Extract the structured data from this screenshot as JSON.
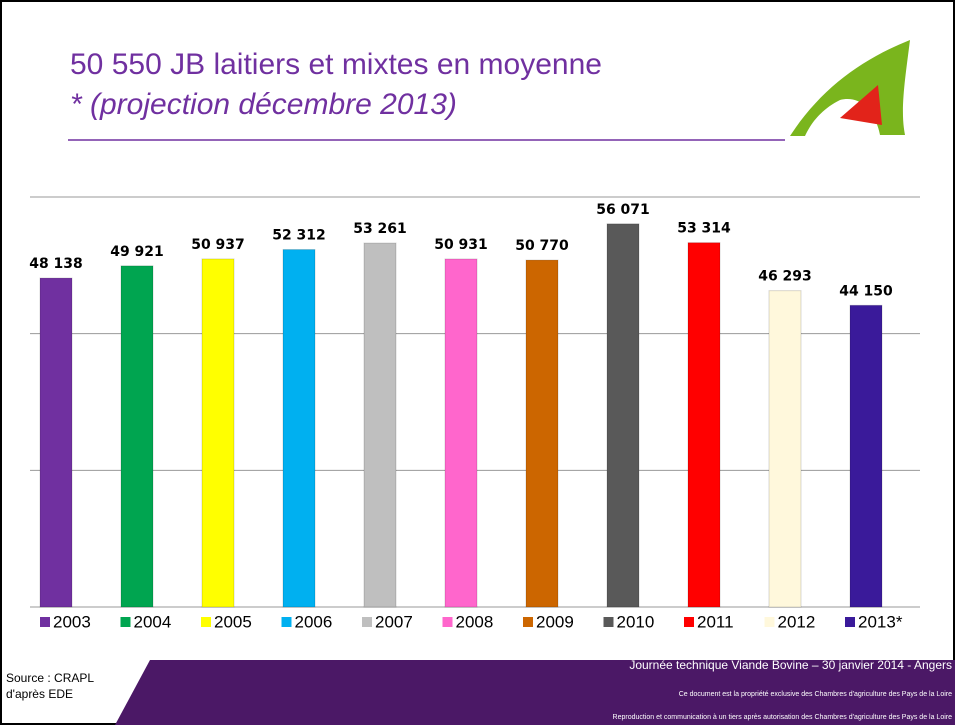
{
  "chart_data": {
    "type": "bar",
    "title": "50 550 JB laitiers et mixtes en moyenne",
    "subtitle": "* (projection décembre 2013)",
    "categories": [
      "2003",
      "2004",
      "2005",
      "2006",
      "2007",
      "2008",
      "2009",
      "2010",
      "2011",
      "2012",
      "2013*"
    ],
    "values": [
      48138,
      49921,
      50937,
      52312,
      53261,
      50931,
      50770,
      56071,
      53314,
      46293,
      44150
    ],
    "value_labels": [
      "48 138",
      "49 921",
      "50 937",
      "52 312",
      "53 261",
      "50 931",
      "50 770",
      "56 071",
      "53 314",
      "46 293",
      "44 150"
    ],
    "colors": [
      "#7030a0",
      "#00a550",
      "#ffff00",
      "#00b0f0",
      "#bfbfbf",
      "#ff66cc",
      "#cc6600",
      "#595959",
      "#ff0000",
      "#fff8dc",
      "#3a1a9a"
    ],
    "ylim": [
      0,
      60000
    ],
    "yticks": [
      0,
      20000,
      40000,
      60000
    ],
    "grid": true,
    "legend": "bottom"
  },
  "footer": {
    "event": "Journée technique Viande Bovine – 30 janvier 2014 - Angers",
    "notice1": "Ce document est la propriété exclusive des Chambres d'agriculture des Pays de la Loire",
    "notice2": "Reproduction et communication à un tiers après autorisation des Chambres d'agriculture des Pays de la Loire",
    "source1": "Source : CRAPL",
    "source2": "d'après EDE"
  }
}
